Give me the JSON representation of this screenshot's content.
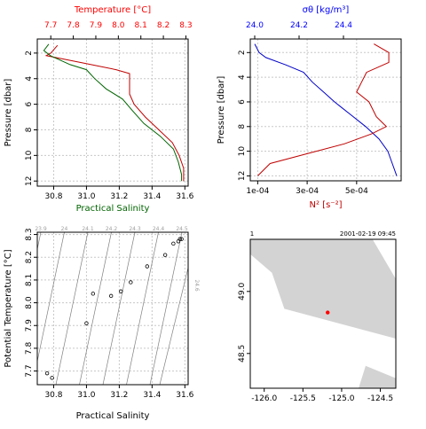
{
  "chart_data": [
    {
      "id": "profile-ts",
      "type": "line",
      "y_label": "Pressure [dbar]",
      "y_range": [
        0.9,
        12.4
      ],
      "y_ticks": [
        2,
        4,
        6,
        8,
        10,
        12
      ],
      "y_tick_labels": [
        "2",
        "4",
        "6",
        "8",
        "10",
        "12"
      ],
      "top_axis": {
        "label": "Temperature [°C]",
        "color": "#ff0000",
        "range": [
          7.64,
          8.31
        ],
        "ticks": [
          7.7,
          7.8,
          7.9,
          8.0,
          8.1,
          8.2,
          8.3
        ],
        "tick_labels": [
          "7.7",
          "7.8",
          "7.9",
          "8.0",
          "8.1",
          "8.2",
          "8.3"
        ]
      },
      "bottom_axis": {
        "label": "Practical Salinity",
        "color": "#006400",
        "range": [
          30.7,
          31.62
        ],
        "ticks": [
          30.8,
          31.0,
          31.2,
          31.4,
          31.6
        ],
        "tick_labels": [
          "30.8",
          "31.0",
          "31.2",
          "31.4",
          "31.6"
        ]
      },
      "series": [
        {
          "quantity": "temperature",
          "color": "#c00000",
          "axis": "top",
          "points": [
            [
              7.73,
              1.4
            ],
            [
              7.7,
              2.0
            ],
            [
              7.68,
              2.2
            ],
            [
              7.85,
              2.8
            ],
            [
              7.99,
              3.3
            ],
            [
              8.05,
              3.6
            ],
            [
              8.05,
              4.4
            ],
            [
              8.05,
              5.2
            ],
            [
              8.07,
              6.0
            ],
            [
              8.12,
              7.0
            ],
            [
              8.18,
              8.0
            ],
            [
              8.24,
              9.0
            ],
            [
              8.27,
              10.0
            ],
            [
              8.29,
              11.0
            ],
            [
              8.29,
              12.0
            ]
          ]
        },
        {
          "quantity": "salinity",
          "color": "#006400",
          "axis": "bottom",
          "points": [
            [
              30.77,
              1.3
            ],
            [
              30.74,
              1.8
            ],
            [
              30.78,
              2.2
            ],
            [
              30.9,
              2.9
            ],
            [
              31.0,
              3.3
            ],
            [
              31.05,
              4.0
            ],
            [
              31.12,
              4.8
            ],
            [
              31.22,
              5.6
            ],
            [
              31.28,
              6.5
            ],
            [
              31.35,
              7.5
            ],
            [
              31.45,
              8.5
            ],
            [
              31.53,
              9.5
            ],
            [
              31.56,
              10.5
            ],
            [
              31.58,
              11.5
            ],
            [
              31.58,
              12.0
            ]
          ]
        }
      ],
      "grid": true
    },
    {
      "id": "profile-density",
      "type": "line",
      "y_label": "Pressure [dbar]",
      "y_range": [
        0.9,
        12.4
      ],
      "y_ticks": [
        2,
        4,
        6,
        8,
        10,
        12
      ],
      "y_tick_labels": [
        "2",
        "4",
        "6",
        "8",
        "10",
        "12"
      ],
      "top_axis": {
        "label": "σθ [kg/m³]",
        "color": "#0000ff",
        "range": [
          23.98,
          24.66
        ],
        "ticks": [
          24.0,
          24.2,
          24.4
        ],
        "tick_labels": [
          "24.0",
          "24.2",
          "24.4"
        ]
      },
      "bottom_axis": {
        "label": "N² [s⁻²]",
        "color": "#ff0000",
        "range": [
          7e-05,
          0.00068
        ],
        "ticks": [
          0.0001,
          0.0003,
          0.0005
        ],
        "tick_labels": [
          "1e-04",
          "3e-04",
          "5e-04"
        ]
      },
      "series": [
        {
          "quantity": "sigma-theta",
          "color": "#0000c8",
          "axis": "top",
          "points": [
            [
              24.0,
              1.3
            ],
            [
              24.02,
              2.0
            ],
            [
              24.05,
              2.4
            ],
            [
              24.14,
              3.0
            ],
            [
              24.22,
              3.6
            ],
            [
              24.26,
              4.4
            ],
            [
              24.31,
              5.2
            ],
            [
              24.36,
              6.0
            ],
            [
              24.43,
              7.0
            ],
            [
              24.5,
              8.0
            ],
            [
              24.56,
              9.0
            ],
            [
              24.6,
              10.0
            ],
            [
              24.62,
              11.0
            ],
            [
              24.64,
              12.0
            ]
          ]
        },
        {
          "quantity": "N2",
          "color": "#c00000",
          "axis": "bottom",
          "points": [
            [
              0.00057,
              1.3
            ],
            [
              0.00063,
              2.0
            ],
            [
              0.00063,
              2.8
            ],
            [
              0.00054,
              3.6
            ],
            [
              0.00052,
              4.4
            ],
            [
              0.0005,
              5.2
            ],
            [
              0.00055,
              6.0
            ],
            [
              0.00058,
              7.2
            ],
            [
              0.00062,
              8.0
            ],
            [
              0.00056,
              8.6
            ],
            [
              0.00045,
              9.4
            ],
            [
              0.0003,
              10.2
            ],
            [
              0.00015,
              11.0
            ],
            [
              0.0001,
              12.0
            ]
          ]
        }
      ],
      "grid": true
    },
    {
      "id": "ts-diagram",
      "type": "scatter",
      "x_label": "Practical Salinity",
      "y_label": "Potential Temperature  [°C]",
      "x_range": [
        30.7,
        31.62
      ],
      "x_ticks": [
        30.8,
        31.0,
        31.2,
        31.4,
        31.6
      ],
      "x_tick_labels": [
        "30.8",
        "31.0",
        "31.2",
        "31.4",
        "31.6"
      ],
      "y_range": [
        7.64,
        8.31
      ],
      "y_ticks": [
        7.7,
        7.8,
        7.9,
        8.0,
        8.1,
        8.2,
        8.3
      ],
      "y_tick_labels": [
        "7.7",
        "7.8",
        "7.9",
        "8.0",
        "8.1",
        "8.2",
        "8.3"
      ],
      "density_contours": [
        "23.9",
        "24",
        "24.1",
        "24.2",
        "24.3",
        "24.4",
        "24.5",
        "24.6"
      ],
      "points": [
        [
          30.76,
          7.69
        ],
        [
          30.79,
          7.67
        ],
        [
          31.0,
          7.91
        ],
        [
          31.04,
          8.04
        ],
        [
          31.15,
          8.03
        ],
        [
          31.21,
          8.05
        ],
        [
          31.27,
          8.09
        ],
        [
          31.37,
          8.16
        ],
        [
          31.48,
          8.21
        ],
        [
          31.53,
          8.26
        ],
        [
          31.56,
          8.27
        ],
        [
          31.57,
          8.28
        ],
        [
          31.58,
          8.28
        ]
      ],
      "grid": true
    },
    {
      "id": "station-map",
      "type": "map",
      "timestamp": "2001-02-19 09:45",
      "corner_label": "1",
      "x_range": [
        -126.18,
        -124.3
      ],
      "x_ticks": [
        -126.0,
        -125.5,
        -125.0,
        -124.5
      ],
      "x_tick_labels": [
        "-126.0",
        "-125.5",
        "-125.0",
        "-124.5"
      ],
      "y_range": [
        48.22,
        49.42
      ],
      "y_ticks": [
        48.5,
        49.0
      ],
      "y_tick_labels": [
        "48.5",
        "49.0"
      ],
      "land_color": "#d3d3d3",
      "station_color": "#ff0000",
      "station": [
        -125.18,
        48.83
      ],
      "land_polygons": [
        [
          [
            -126.18,
            49.42
          ],
          [
            -124.6,
            49.42
          ],
          [
            -124.3,
            49.1
          ],
          [
            -124.3,
            48.62
          ],
          [
            -125.74,
            48.86
          ],
          [
            -125.9,
            49.15
          ],
          [
            -126.18,
            49.3
          ]
        ],
        [
          [
            -124.78,
            48.22
          ],
          [
            -124.3,
            48.22
          ],
          [
            -124.3,
            48.3
          ],
          [
            -124.69,
            48.4
          ]
        ]
      ]
    }
  ]
}
